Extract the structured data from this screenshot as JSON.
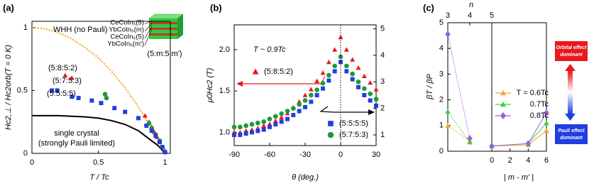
{
  "chart_data": [
    {
      "type": "scatter",
      "panel_label": "(a)",
      "x_label": "T / Tc",
      "y_label": "Hc2,⊥ / Hc2orb(T = 0 K)",
      "xlim": [
        0,
        1.04
      ],
      "ylim": [
        0,
        1.05
      ],
      "xticks": [
        0,
        0.5,
        1
      ],
      "yticks": [
        0,
        0.5,
        1
      ],
      "curves": [
        {
          "label": [
            "WHH (no Pauli)"
          ],
          "color": "#f0a020",
          "style": "dotted",
          "x": [
            0,
            0.1,
            0.2,
            0.3,
            0.4,
            0.5,
            0.6,
            0.7,
            0.8,
            0.9,
            1.0
          ],
          "values": [
            1,
            0.99,
            0.96,
            0.91,
            0.84,
            0.76,
            0.65,
            0.52,
            0.37,
            0.2,
            0
          ]
        },
        {
          "label": [
            "single crystal",
            "(strongly Pauli limited)"
          ],
          "color": "#000000",
          "style": "solid",
          "x": [
            0,
            0.2,
            0.4,
            0.5,
            0.6,
            0.7,
            0.8,
            0.9,
            0.95,
            1.0
          ],
          "values": [
            0.3,
            0.3,
            0.29,
            0.28,
            0.26,
            0.23,
            0.18,
            0.1,
            0.06,
            0
          ]
        }
      ],
      "series": [
        {
          "name": "(5:8:5:2)",
          "color": "#e8191e",
          "marker": "triangle",
          "x": [
            0.25,
            0.3,
            0.85,
            0.88,
            0.9,
            0.92,
            0.94,
            0.96,
            0.98,
            1.0
          ],
          "values": [
            0.62,
            0.6,
            0.3,
            0.25,
            0.21,
            0.17,
            0.13,
            0.09,
            0.05,
            0.02
          ]
        },
        {
          "name": "(5:7:5:3)",
          "color": "#1f9a3a",
          "marker": "circle",
          "x": [
            0.55,
            0.56,
            0.88,
            0.9,
            0.93,
            0.96,
            0.98,
            1.0
          ],
          "values": [
            0.47,
            0.44,
            0.24,
            0.2,
            0.15,
            0.1,
            0.05,
            0.01
          ]
        },
        {
          "name": "(5:5:5:5)",
          "color": "#1f3fe0",
          "marker": "square",
          "x": [
            0.15,
            0.19,
            0.3,
            0.35,
            0.45,
            0.52,
            0.62,
            0.7,
            0.8,
            0.86,
            0.9,
            0.93,
            0.96,
            0.98,
            1.0
          ],
          "values": [
            0.5,
            0.5,
            0.45,
            0.44,
            0.42,
            0.4,
            0.36,
            0.33,
            0.28,
            0.22,
            0.18,
            0.14,
            0.09,
            0.05,
            0.01
          ]
        }
      ],
      "inset": {
        "layers": [
          "CeCoIn₅(5)",
          "YbCoIn₅(m)",
          "CeCoIn₅(5)",
          "YbCoIn₅(m')"
        ],
        "label": "(5:m:5:m')"
      }
    },
    {
      "type": "scatter",
      "panel_label": "(b)",
      "x_label": "θ (deg.)",
      "y_label": "μ0Hc2 (T)",
      "annotation": "T ~ 0.9Tc",
      "xlim": [
        -90,
        30
      ],
      "ylim": [
        0.84,
        2.3
      ],
      "y2lim": [
        0.6,
        5.15
      ],
      "xticks": [
        -90,
        -60,
        -30,
        0,
        30
      ],
      "yticks": [
        {
          "value": 1,
          "label": "1.0"
        },
        {
          "value": 1.5,
          "label": "1.5"
        },
        {
          "value": 2,
          "label": "2.0"
        }
      ],
      "y2ticks": [
        1,
        2,
        3,
        4,
        5
      ],
      "x": [
        -90,
        -85,
        -80,
        -75,
        -70,
        -65,
        -60,
        -55,
        -50,
        -45,
        -40,
        -35,
        -30,
        -25,
        -20,
        -15,
        -10,
        -5,
        0,
        5,
        10,
        15,
        20,
        25,
        30
      ],
      "series": [
        {
          "name": "(5:8:5:2)",
          "color": "#e8191e",
          "marker": "triangle",
          "values": [
            1.0,
            1.0,
            1.02,
            1.03,
            1.05,
            1.08,
            1.1,
            1.14,
            1.18,
            1.23,
            1.3,
            1.37,
            1.45,
            1.52,
            1.62,
            1.72,
            1.85,
            2.0,
            2.15,
            2.0,
            1.88,
            1.78,
            1.68,
            1.6,
            1.52
          ]
        },
        {
          "name": "(5:5:5:5)",
          "color": "#1f3fe0",
          "marker": "square",
          "axis": "y2",
          "values": [
            1.0,
            1.0,
            1.05,
            1.1,
            1.15,
            1.2,
            1.3,
            1.4,
            1.5,
            1.6,
            1.75,
            1.9,
            2.05,
            2.25,
            2.5,
            2.75,
            3.05,
            3.4,
            3.75,
            3.4,
            3.1,
            2.8,
            2.5,
            2.3,
            2.1
          ]
        },
        {
          "name": "(5:7:5:3)",
          "color": "#1f9a3a",
          "marker": "circle",
          "axis": "y2",
          "values": [
            1.3,
            1.3,
            1.35,
            1.4,
            1.45,
            1.5,
            1.6,
            1.7,
            1.8,
            1.9,
            2.0,
            2.15,
            2.3,
            2.5,
            2.7,
            2.95,
            3.25,
            3.6,
            3.95,
            3.6,
            3.3,
            3.0,
            2.75,
            2.55,
            2.35
          ]
        }
      ]
    },
    {
      "type": "line",
      "panel_label": "(c)",
      "x_label": "| m - m' |",
      "x2_label": "n",
      "y_label": "βT / βP",
      "xlim": [
        0,
        6
      ],
      "xticks": [
        0,
        2,
        4,
        6
      ],
      "x2lim": [
        3,
        5
      ],
      "x2ticks": [
        3,
        4,
        5
      ],
      "ylim": [
        0,
        5
      ],
      "yticks": [
        0,
        1,
        2,
        3,
        4,
        5
      ],
      "series": [
        {
          "name": "T = 0.6Tc",
          "color": "#f6a534",
          "marker": "triangle",
          "n_x": [
            3,
            4
          ],
          "n_values": [
            1.0,
            0.4
          ],
          "x": [
            0,
            4,
            6
          ],
          "values": [
            0.2,
            0.25,
            0.8
          ]
        },
        {
          "name": "0.7Tc",
          "color": "#38d838",
          "marker": "triangle",
          "n_x": [
            3,
            4
          ],
          "n_values": [
            1.55,
            0.35
          ],
          "x": [
            0,
            4,
            6
          ],
          "values": [
            0.2,
            0.3,
            1.1
          ]
        },
        {
          "name": "0.8Tc",
          "color": "#9b5fe0",
          "marker": "diamond",
          "n_x": [
            3,
            4
          ],
          "n_values": [
            4.55,
            0.5
          ],
          "x": [
            0,
            4,
            6
          ],
          "values": [
            0.2,
            0.3,
            1.5
          ]
        }
      ],
      "annotations": {
        "orbital": [
          "Orbital effect",
          "dominant"
        ],
        "pauli": [
          "Pauli effect",
          "dominant"
        ]
      }
    }
  ]
}
